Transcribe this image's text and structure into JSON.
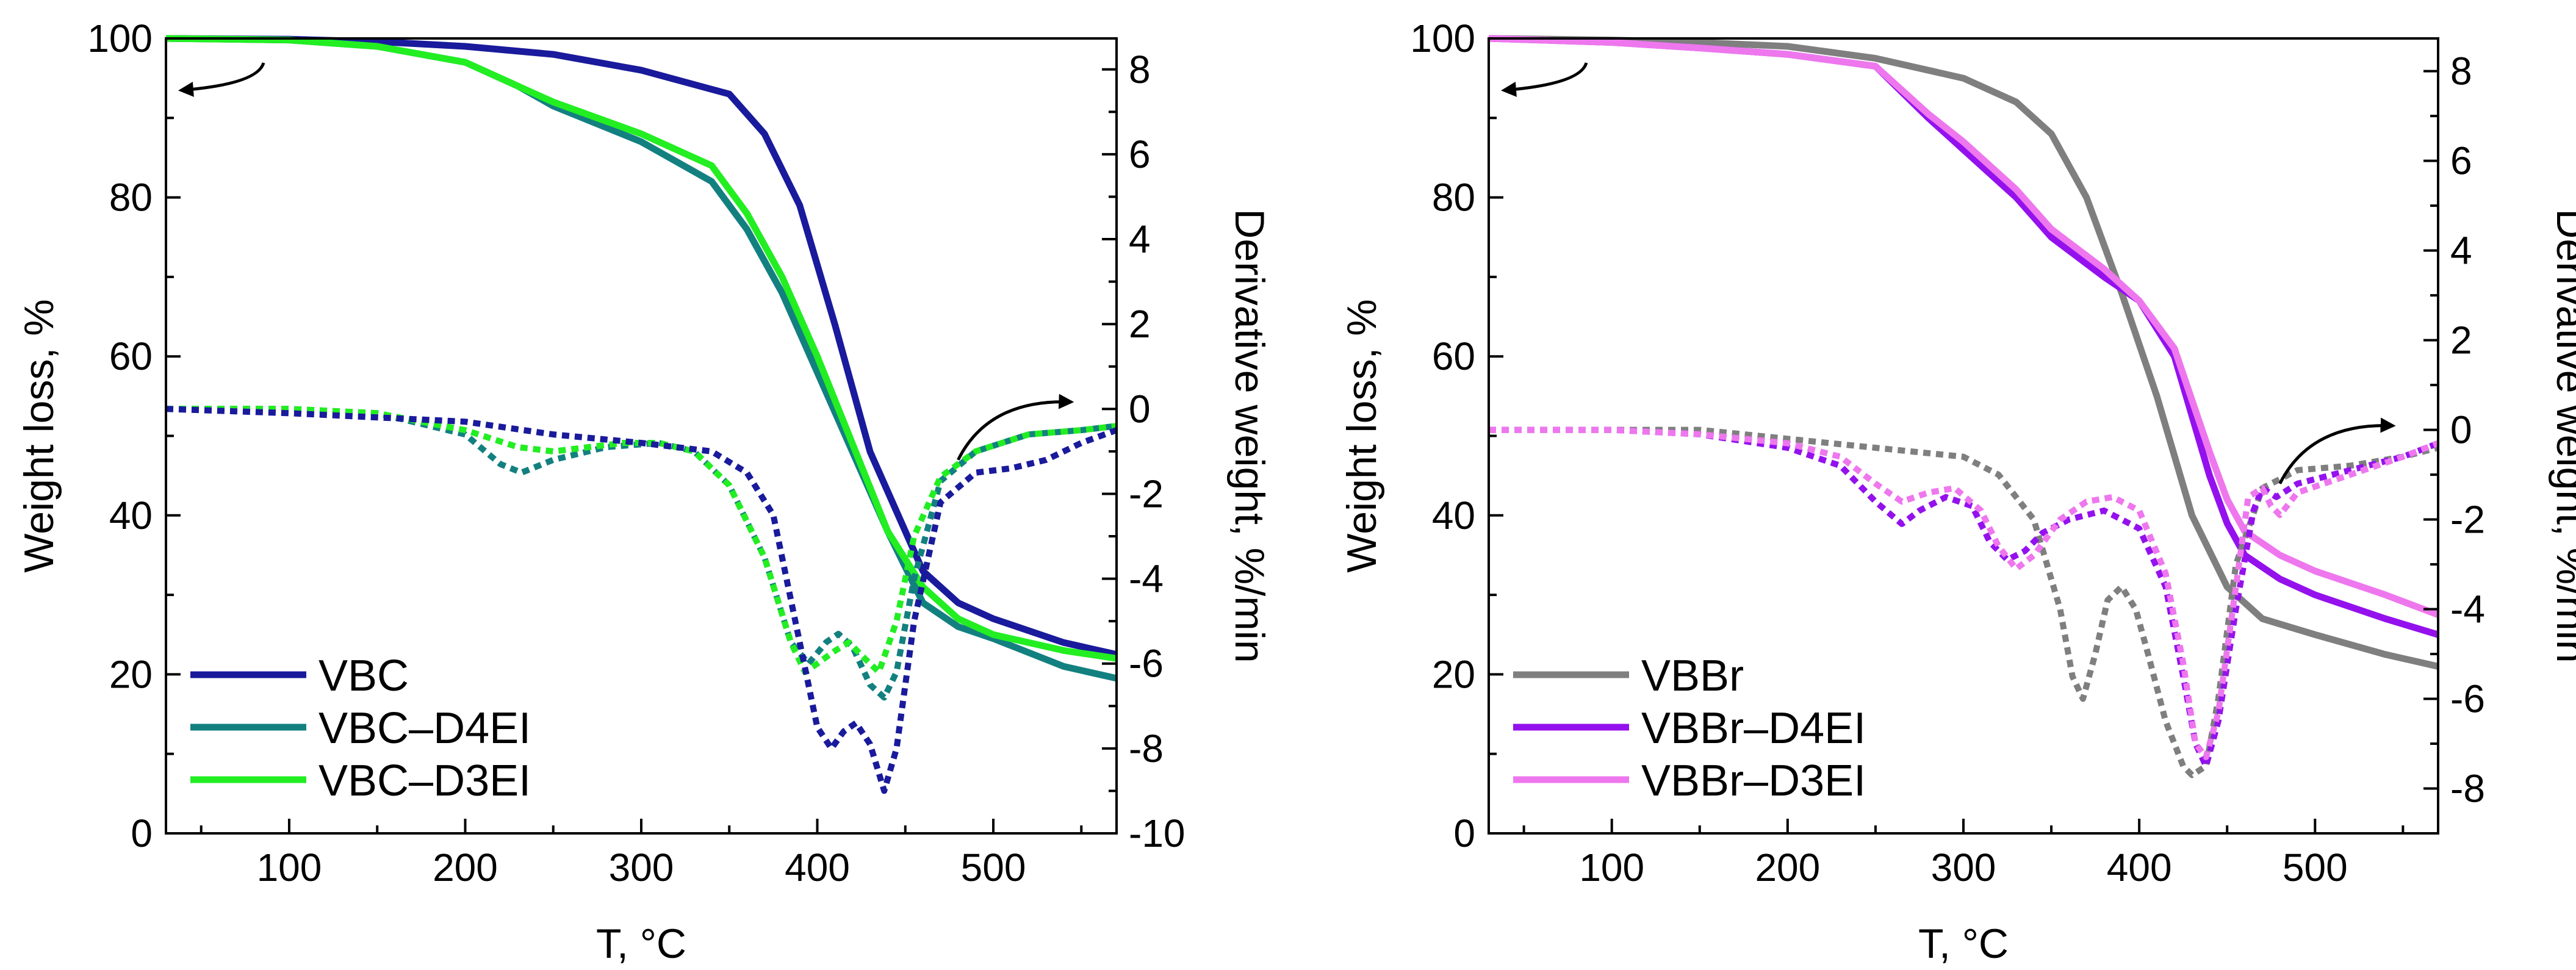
{
  "chart_data": [
    {
      "type": "line",
      "name": "left-panel",
      "xlabel": "T, °C",
      "ylabel_left": "Weight loss, %",
      "ylabel_right": "Derivative weight, %/min",
      "xlim": [
        30,
        570
      ],
      "ylim_left": [
        0,
        100
      ],
      "ylim_right": [
        -10,
        8.73
      ],
      "xticks": [
        100,
        200,
        300,
        400,
        500
      ],
      "yticks_left": [
        0,
        20,
        40,
        60,
        80,
        100
      ],
      "yticks_right": [
        -10,
        -8,
        -6,
        -4,
        -2,
        0,
        2,
        4,
        6,
        8
      ],
      "legend": [
        "VBC",
        "VBC–D4EI",
        "VBC–D3EI"
      ],
      "series": [
        {
          "name": "VBC",
          "axis": "left",
          "color": "#1a1a9c",
          "dash": false,
          "x": [
            30,
            100,
            150,
            200,
            250,
            300,
            350,
            370,
            390,
            410,
            430,
            450,
            460,
            480,
            500,
            540,
            570
          ],
          "y": [
            100,
            99.9,
            99.6,
            99,
            98,
            96,
            93,
            88,
            79,
            64,
            48,
            38,
            33,
            29,
            27,
            24,
            22.5
          ]
        },
        {
          "name": "VBC–D4EI",
          "axis": "left",
          "color": "#138080",
          "dash": false,
          "x": [
            30,
            100,
            150,
            200,
            230,
            250,
            300,
            340,
            360,
            380,
            400,
            420,
            440,
            460,
            480,
            500,
            540,
            570
          ],
          "y": [
            100,
            99.8,
            99,
            97,
            94,
            91.5,
            87,
            82,
            76,
            68,
            58,
            48,
            38,
            29,
            26,
            24.5,
            21,
            19.5
          ]
        },
        {
          "name": "VBC–D3EI",
          "axis": "left",
          "color": "#22ee22",
          "dash": false,
          "x": [
            30,
            100,
            150,
            200,
            230,
            250,
            300,
            340,
            360,
            380,
            400,
            420,
            440,
            460,
            480,
            500,
            540,
            570
          ],
          "y": [
            100,
            99.8,
            99,
            97,
            94,
            92,
            88,
            84,
            78,
            70,
            60,
            49,
            38,
            31,
            27,
            25,
            23,
            22
          ]
        },
        {
          "name": "VBC–D4EI DTG",
          "axis": "right",
          "color": "#138080",
          "dash": true,
          "x": [
            30,
            100,
            150,
            200,
            220,
            232,
            250,
            280,
            310,
            330,
            350,
            370,
            385,
            395,
            405,
            412,
            420,
            430,
            438,
            445,
            455,
            470,
            490,
            520,
            550,
            570
          ],
          "y": [
            0,
            0,
            -0.1,
            -0.6,
            -1.3,
            -1.5,
            -1.2,
            -0.9,
            -0.8,
            -1,
            -1.8,
            -3.5,
            -5.5,
            -6,
            -5.5,
            -5.3,
            -5.6,
            -6.5,
            -6.8,
            -6.2,
            -4,
            -1.7,
            -1,
            -0.6,
            -0.5,
            -0.4
          ]
        },
        {
          "name": "VBC–D3EI DTG",
          "axis": "right",
          "color": "#22ee22",
          "dash": true,
          "x": [
            30,
            100,
            150,
            200,
            230,
            250,
            290,
            310,
            330,
            350,
            370,
            385,
            393,
            400,
            410,
            418,
            425,
            435,
            445,
            455,
            470,
            490,
            520,
            550,
            570
          ],
          "y": [
            0,
            0,
            -0.1,
            -0.5,
            -0.9,
            -1,
            -0.8,
            -0.8,
            -1,
            -1.8,
            -3.5,
            -5.5,
            -6.2,
            -6,
            -5.7,
            -5.5,
            -5.8,
            -6.2,
            -5,
            -3,
            -1.6,
            -1,
            -0.6,
            -0.5,
            -0.4
          ]
        },
        {
          "name": "VBC DTG",
          "axis": "right",
          "color": "#1a1a9c",
          "dash": true,
          "x": [
            30,
            100,
            150,
            200,
            250,
            300,
            340,
            360,
            375,
            390,
            400,
            408,
            415,
            422,
            430,
            438,
            445,
            455,
            470,
            490,
            510,
            530,
            550,
            570
          ],
          "y": [
            0,
            -0.1,
            -0.2,
            -0.3,
            -0.6,
            -0.8,
            -1,
            -1.5,
            -2.5,
            -5.5,
            -7.5,
            -8,
            -7.6,
            -7.4,
            -7.9,
            -9,
            -8,
            -5,
            -2.2,
            -1.5,
            -1.4,
            -1.2,
            -0.8,
            -0.5
          ]
        }
      ],
      "annotations": [
        "arrow-left-to-weight-axis",
        "arrow-right-to-derivative-axis"
      ]
    },
    {
      "type": "line",
      "name": "right-panel",
      "xlabel": "T, °C",
      "ylabel_left": "Weight loss, %",
      "ylabel_right": "Derivative weight, %/min",
      "xlim": [
        30,
        570
      ],
      "ylim_left": [
        0,
        100
      ],
      "ylim_right": [
        -9,
        8.73
      ],
      "xticks": [
        100,
        200,
        300,
        400,
        500
      ],
      "yticks_left": [
        0,
        20,
        40,
        60,
        80,
        100
      ],
      "yticks_right": [
        -8,
        -6,
        -4,
        -2,
        0,
        2,
        4,
        6,
        8
      ],
      "legend": [
        "VBBr",
        "VBBr–D4EI",
        "VBBr–D3EI"
      ],
      "series": [
        {
          "name": "VBBr",
          "axis": "left",
          "color": "#7f7f7f",
          "dash": false,
          "x": [
            30,
            100,
            150,
            200,
            250,
            300,
            330,
            350,
            370,
            390,
            410,
            430,
            450,
            470,
            500,
            540,
            570
          ],
          "y": [
            100,
            99.8,
            99.5,
            99,
            97.5,
            95,
            92,
            88,
            80,
            68,
            55,
            40,
            31,
            27,
            25,
            22.5,
            21
          ]
        },
        {
          "name": "VBBr–D4EI",
          "axis": "left",
          "color": "#9411ee",
          "dash": false,
          "x": [
            30,
            100,
            150,
            200,
            250,
            280,
            300,
            330,
            350,
            380,
            400,
            420,
            440,
            450,
            460,
            480,
            500,
            540,
            570
          ],
          "y": [
            100,
            99.5,
            98.8,
            98,
            96.5,
            90,
            86,
            80,
            75,
            70,
            67,
            60,
            45,
            39,
            35,
            32,
            30,
            27,
            25
          ]
        },
        {
          "name": "VBBr–D3EI",
          "axis": "left",
          "color": "#ee77ee",
          "dash": false,
          "x": [
            30,
            100,
            150,
            200,
            250,
            280,
            300,
            330,
            350,
            380,
            400,
            420,
            440,
            450,
            460,
            480,
            500,
            540,
            570
          ],
          "y": [
            100,
            99.5,
            98.8,
            98,
            96.5,
            90.5,
            87,
            81,
            76,
            71,
            67,
            61,
            48,
            42,
            38,
            35,
            33,
            30,
            27.5
          ]
        },
        {
          "name": "VBBr DTG",
          "axis": "right",
          "color": "#7f7f7f",
          "dash": true,
          "x": [
            30,
            100,
            150,
            200,
            250,
            300,
            320,
            340,
            355,
            362,
            368,
            375,
            382,
            390,
            398,
            405,
            415,
            425,
            430,
            438,
            445,
            455,
            470,
            490,
            520,
            550,
            570
          ],
          "y": [
            0,
            0,
            0,
            -0.2,
            -0.4,
            -0.6,
            -1,
            -2,
            -4,
            -5.5,
            -6,
            -5,
            -3.8,
            -3.5,
            -4,
            -5,
            -6.5,
            -7.5,
            -7.7,
            -7.5,
            -6,
            -3,
            -1.3,
            -0.9,
            -0.8,
            -0.6,
            -0.4
          ]
        },
        {
          "name": "VBBr–D4EI DTG",
          "axis": "right",
          "color": "#9411ee",
          "dash": true,
          "x": [
            30,
            100,
            150,
            200,
            230,
            250,
            265,
            275,
            290,
            305,
            315,
            325,
            335,
            345,
            360,
            380,
            400,
            415,
            425,
            432,
            438,
            445,
            455,
            465,
            470,
            478,
            490,
            520,
            550,
            570
          ],
          "y": [
            0,
            0,
            -0.1,
            -0.4,
            -0.8,
            -1.6,
            -2.1,
            -1.8,
            -1.5,
            -1.7,
            -2.5,
            -2.9,
            -2.7,
            -2.3,
            -2,
            -1.8,
            -2.2,
            -3.5,
            -5.5,
            -7,
            -7.5,
            -6.5,
            -4,
            -1.8,
            -1.3,
            -1.5,
            -1.2,
            -0.9,
            -0.6,
            -0.3
          ]
        },
        {
          "name": "VBBr–D3EI DTG",
          "axis": "right",
          "color": "#ee77ee",
          "dash": true,
          "x": [
            30,
            100,
            150,
            200,
            230,
            250,
            265,
            280,
            295,
            310,
            320,
            330,
            340,
            355,
            370,
            385,
            400,
            415,
            425,
            432,
            438,
            445,
            455,
            462,
            470,
            475,
            480,
            490,
            520,
            550,
            570
          ],
          "y": [
            0,
            0,
            -0.1,
            -0.3,
            -0.6,
            -1.2,
            -1.6,
            -1.4,
            -1.3,
            -1.8,
            -2.6,
            -3.1,
            -2.8,
            -2,
            -1.6,
            -1.5,
            -1.8,
            -3.2,
            -5.2,
            -7,
            -7.3,
            -6.3,
            -3.5,
            -1.5,
            -1.3,
            -1.7,
            -1.9,
            -1.4,
            -1,
            -0.6,
            -0.3
          ]
        }
      ],
      "annotations": [
        "arrow-left-to-weight-axis",
        "arrow-right-to-derivative-axis"
      ]
    }
  ]
}
